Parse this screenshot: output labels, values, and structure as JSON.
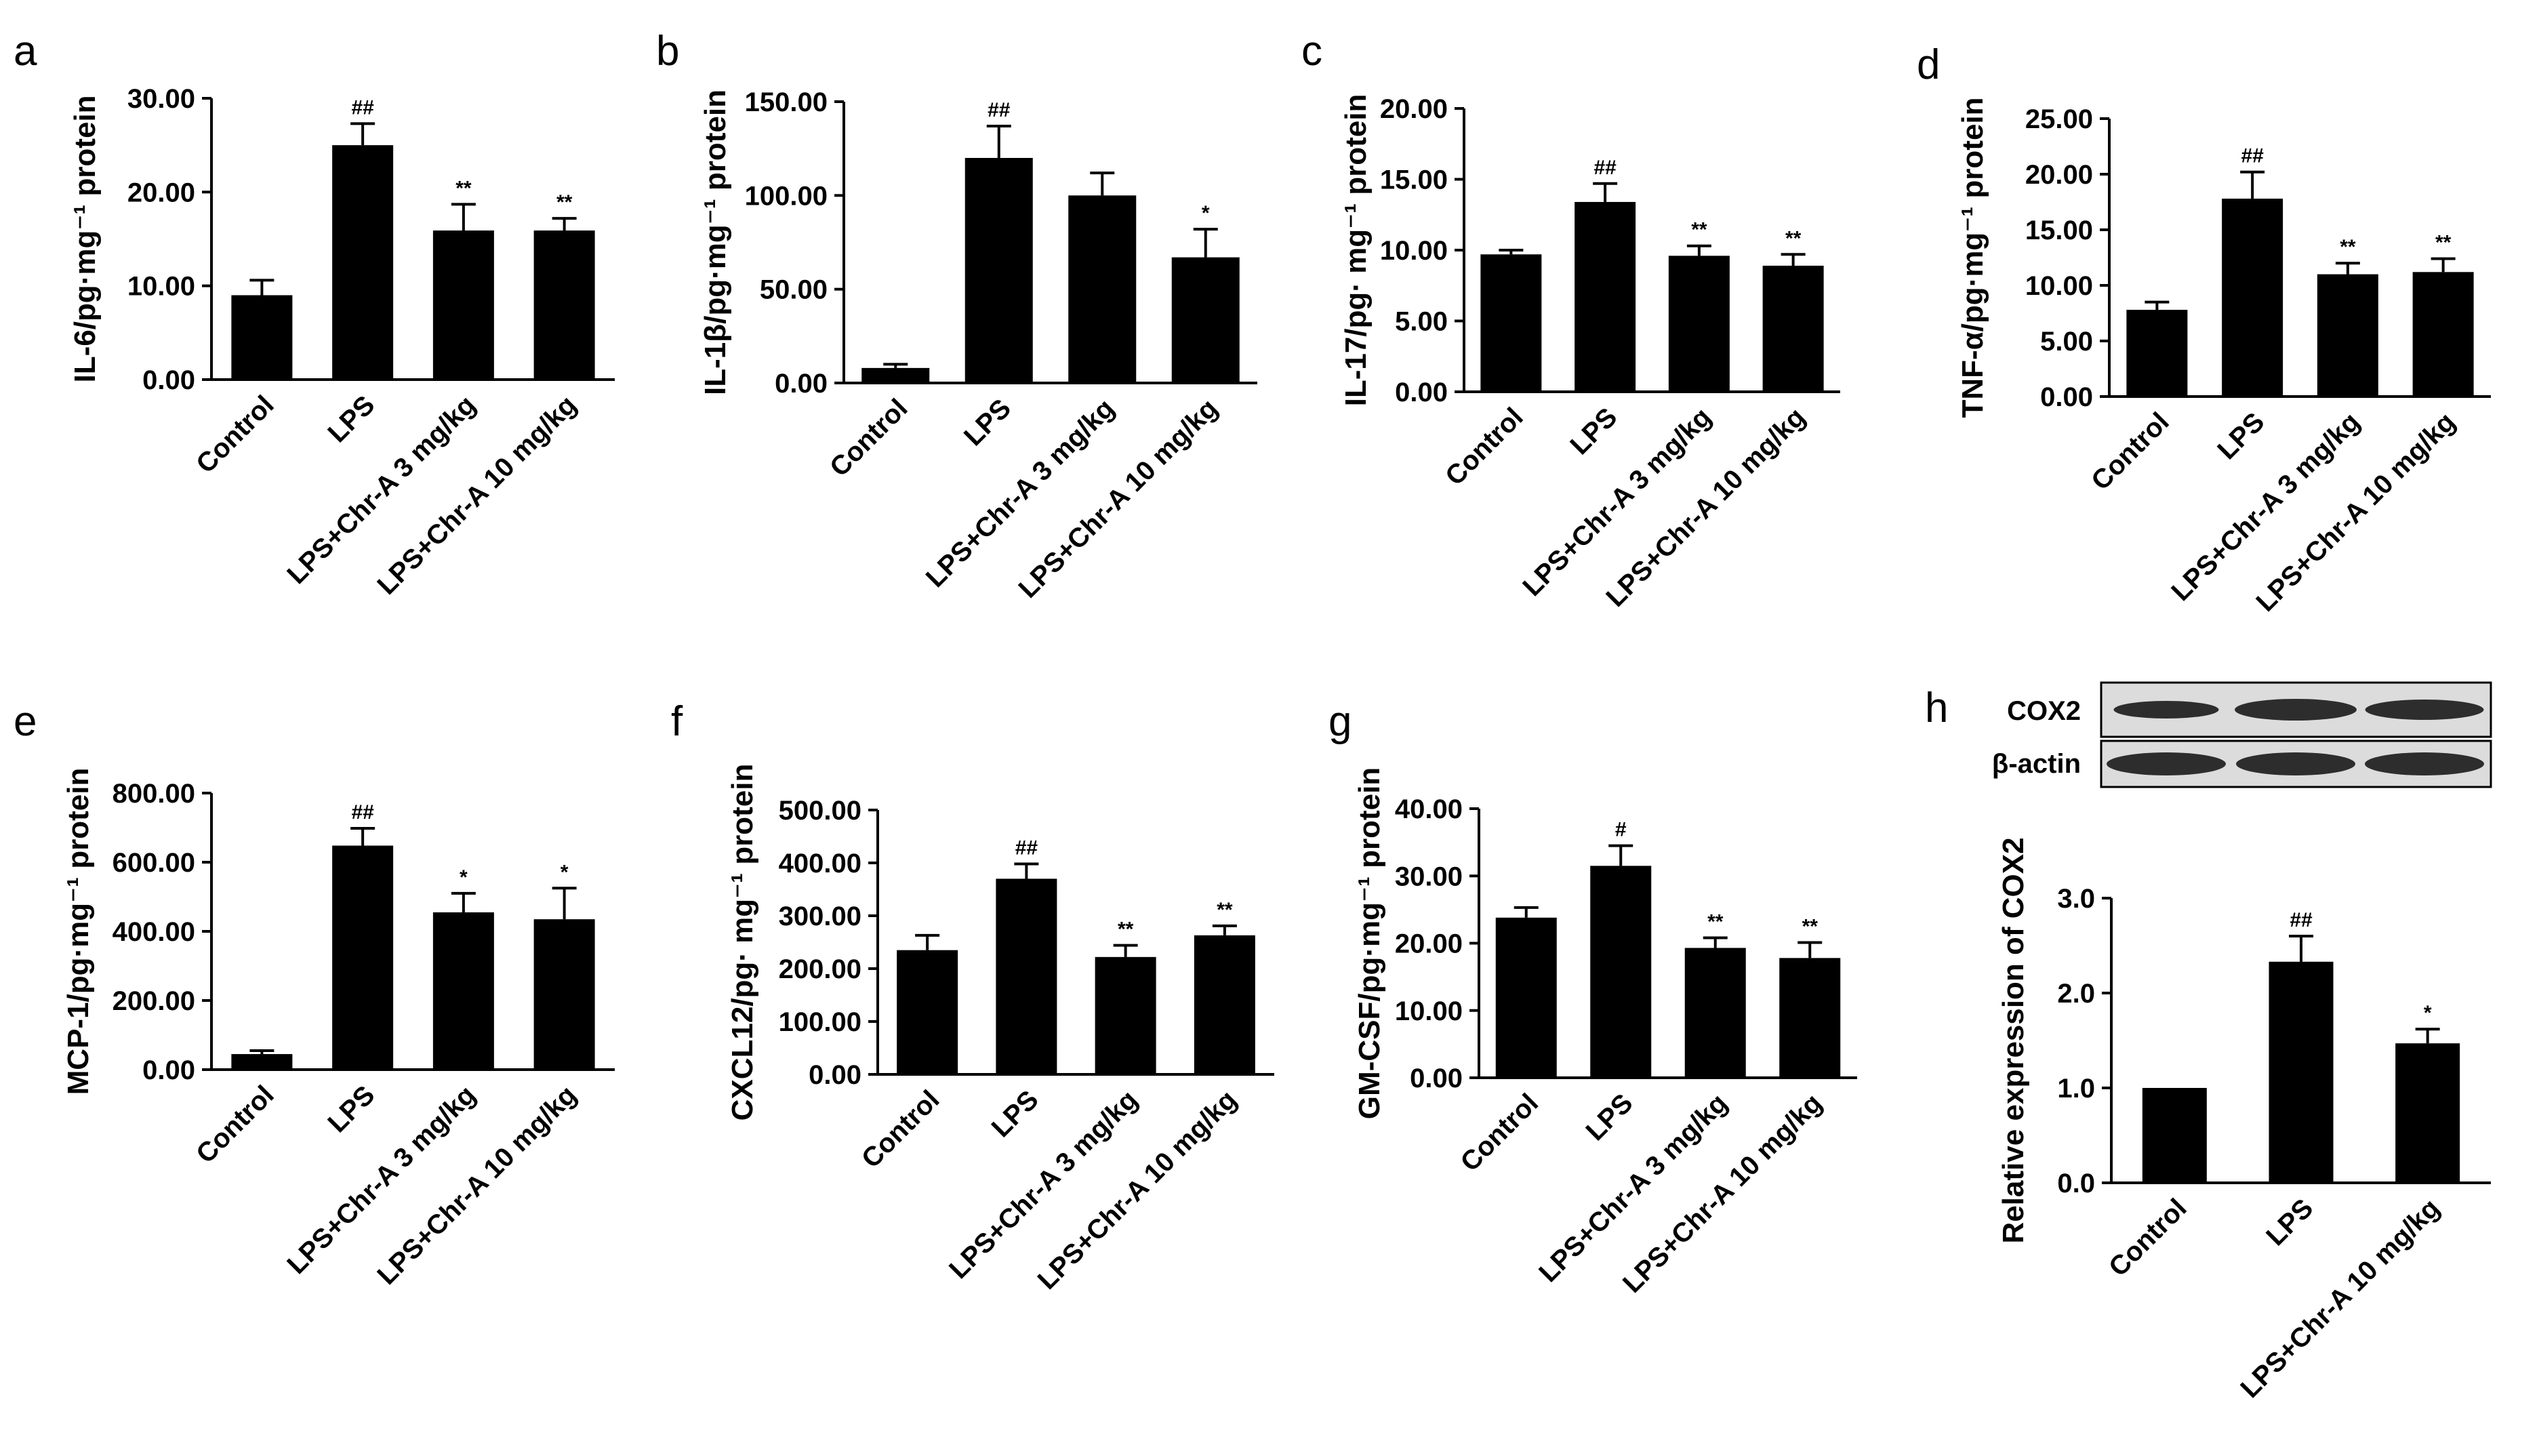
{
  "figure": {
    "blot": {
      "labels": [
        "COX2",
        "β-actin"
      ]
    }
  },
  "chart_data": [
    {
      "panel": "a",
      "type": "bar",
      "title": "",
      "ylabel": "IL-6/pg·mg⁻¹ protein",
      "xlabel": "",
      "categories": [
        "Control",
        "LPS",
        "LPS+Chr-A 3 mg/kg",
        "LPS+Chr-A 10 mg/kg"
      ],
      "values": [
        9.0,
        25.0,
        15.9,
        15.9
      ],
      "errors": [
        1.6,
        2.3,
        2.8,
        1.3
      ],
      "annotations": [
        "",
        "##",
        "**",
        "**"
      ],
      "ylim": [
        0,
        30
      ],
      "yticks": [
        0,
        10,
        20,
        30
      ],
      "ytick_labels": [
        "0.00",
        "10.00",
        "20.00",
        "30.00"
      ]
    },
    {
      "panel": "b",
      "type": "bar",
      "title": "",
      "ylabel": "IL-1β/pg·mg⁻¹ protein",
      "xlabel": "",
      "categories": [
        "Control",
        "LPS",
        "LPS+Chr-A 3 mg/kg",
        "LPS+Chr-A 10 mg/kg"
      ],
      "values": [
        8,
        120,
        100,
        67
      ],
      "errors": [
        2,
        17,
        12,
        15
      ],
      "annotations": [
        "",
        "##",
        "",
        "*"
      ],
      "ylim": [
        0,
        150
      ],
      "yticks": [
        0,
        50,
        100,
        150
      ],
      "ytick_labels": [
        "0.00",
        "50.00",
        "100.00",
        "150.00"
      ]
    },
    {
      "panel": "c",
      "type": "bar",
      "title": "",
      "ylabel": "IL-17/pg· mg⁻¹ protein",
      "xlabel": "",
      "categories": [
        "Control",
        "LPS",
        "LPS+Chr-A 3 mg/kg",
        "LPS+Chr-A 10 mg/kg"
      ],
      "values": [
        9.7,
        13.4,
        9.6,
        8.9
      ],
      "errors": [
        0.3,
        1.3,
        0.7,
        0.8
      ],
      "annotations": [
        "",
        "##",
        "**",
        "**"
      ],
      "ylim": [
        0,
        20
      ],
      "yticks": [
        0,
        5,
        10,
        15,
        20
      ],
      "ytick_labels": [
        "0.00",
        "5.00",
        "10.00",
        "15.00",
        "20.00"
      ]
    },
    {
      "panel": "d",
      "type": "bar",
      "title": "",
      "ylabel": "TNF-α/pg·mg⁻¹ protein",
      "xlabel": "",
      "categories": [
        "Control",
        "LPS",
        "LPS+Chr-A 3 mg/kg",
        "LPS+Chr-A 10 mg/kg"
      ],
      "values": [
        7.8,
        17.8,
        11.0,
        11.2
      ],
      "errors": [
        0.7,
        2.4,
        1.0,
        1.2
      ],
      "annotations": [
        "",
        "##",
        "**",
        "**"
      ],
      "ylim": [
        0,
        25
      ],
      "yticks": [
        0,
        5,
        10,
        15,
        20,
        25
      ],
      "ytick_labels": [
        "0.00",
        "5.00",
        "10.00",
        "15.00",
        "20.00",
        "25.00"
      ]
    },
    {
      "panel": "e",
      "type": "bar",
      "title": "",
      "ylabel": "MCP-1/pg·mg⁻¹ protein",
      "xlabel": "",
      "categories": [
        "Control",
        "LPS",
        "LPS+Chr-A 3 mg/kg",
        "LPS+Chr-A 10 mg/kg"
      ],
      "values": [
        45,
        648,
        455,
        435
      ],
      "errors": [
        10,
        50,
        55,
        90
      ],
      "annotations": [
        "",
        "##",
        "*",
        "*"
      ],
      "ylim": [
        0,
        800
      ],
      "yticks": [
        0,
        200,
        400,
        600,
        800
      ],
      "ytick_labels": [
        "0.00",
        "200.00",
        "400.00",
        "600.00",
        "800.00"
      ]
    },
    {
      "panel": "f",
      "type": "bar",
      "title": "",
      "ylabel": "CXCL12/pg· mg⁻¹ protein",
      "xlabel": "",
      "categories": [
        "Control",
        "LPS",
        "LPS+Chr-A 3 mg/kg",
        "LPS+Chr-A 10 mg/kg"
      ],
      "values": [
        235,
        370,
        222,
        263
      ],
      "errors": [
        28,
        28,
        22,
        18
      ],
      "annotations": [
        "",
        "##",
        "**",
        "**"
      ],
      "ylim": [
        0,
        500
      ],
      "yticks": [
        0,
        100,
        200,
        300,
        400,
        500
      ],
      "ytick_labels": [
        "0.00",
        "100.00",
        "200.00",
        "300.00",
        "400.00",
        "500.00"
      ]
    },
    {
      "panel": "g",
      "type": "bar",
      "title": "",
      "ylabel": "GM-CSF/pg·mg⁻¹ protein",
      "xlabel": "",
      "categories": [
        "Control",
        "LPS",
        "LPS+Chr-A 3 mg/kg",
        "LPS+Chr-A 10 mg/kg"
      ],
      "values": [
        23.8,
        31.5,
        19.3,
        17.8
      ],
      "errors": [
        1.5,
        3.0,
        1.5,
        2.3
      ],
      "annotations": [
        "",
        "#",
        "**",
        "**"
      ],
      "ylim": [
        0,
        40
      ],
      "yticks": [
        0,
        10,
        20,
        30,
        40
      ],
      "ytick_labels": [
        "0.00",
        "10.00",
        "20.00",
        "30.00",
        "40.00"
      ]
    },
    {
      "panel": "h",
      "type": "bar",
      "title": "",
      "ylabel": "Relative expression of COX2",
      "xlabel": "",
      "categories": [
        "Control",
        "LPS",
        "LPS+Chr-A 10 mg/kg"
      ],
      "values": [
        1.0,
        2.33,
        1.47
      ],
      "errors": [
        0,
        0.27,
        0.15
      ],
      "annotations": [
        "",
        "##",
        "*"
      ],
      "ylim": [
        0,
        3
      ],
      "yticks": [
        0,
        1,
        2,
        3
      ],
      "ytick_labels": [
        "0.0",
        "1.0",
        "2.0",
        "3.0"
      ]
    }
  ]
}
